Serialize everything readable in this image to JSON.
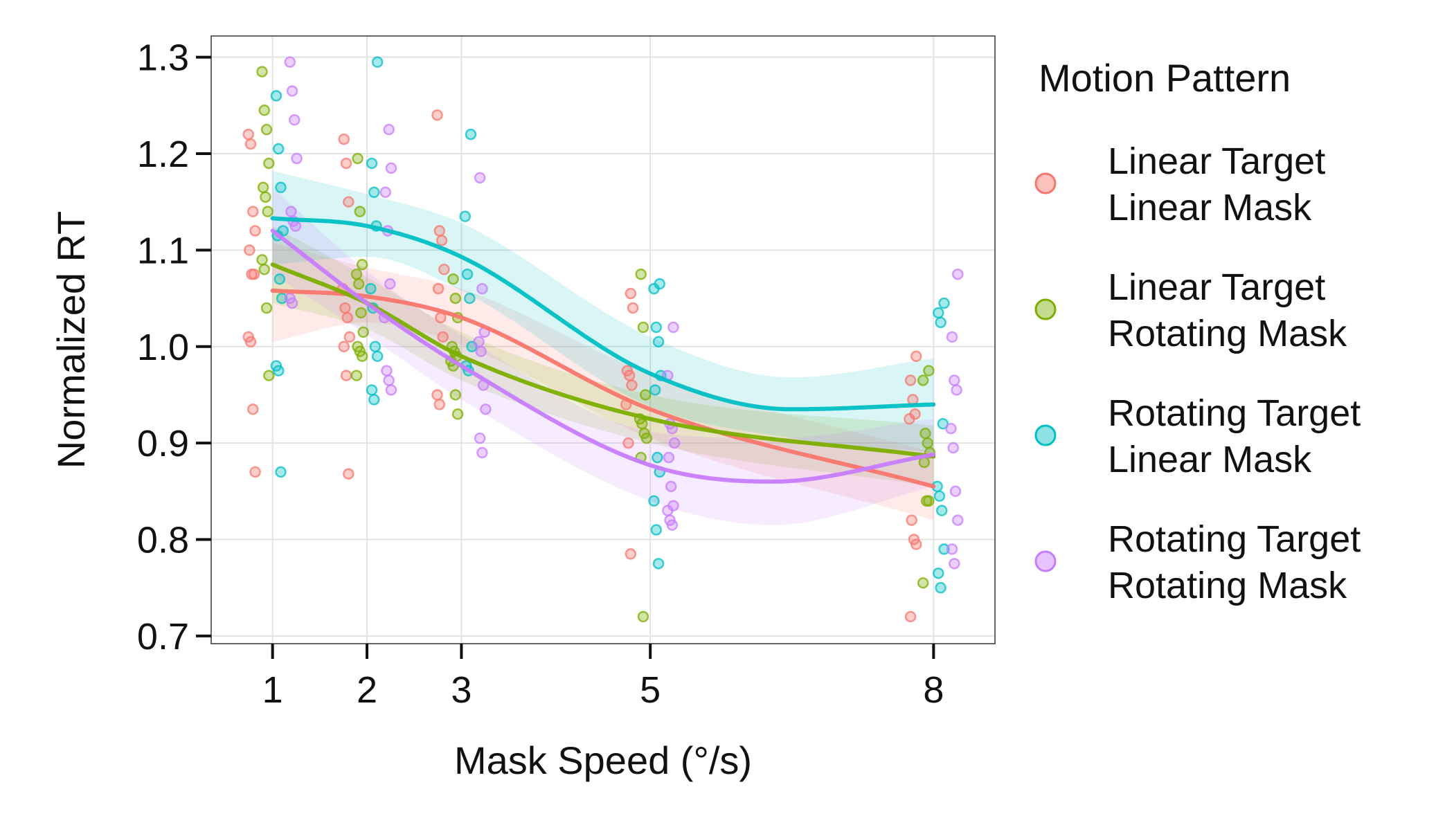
{
  "chart_data": {
    "type": "scatter",
    "xlabel": "Mask Speed (°/s)",
    "ylabel": "Normalized RT",
    "x_ticks": [
      1,
      2,
      3,
      5,
      8
    ],
    "x_tick_labels": [
      "1",
      "2",
      "3",
      "5",
      "8"
    ],
    "y_ticks": [
      0.7,
      0.8,
      0.9,
      1.0,
      1.1,
      1.2,
      1.3
    ],
    "y_tick_labels": [
      "0.7",
      "0.8",
      "0.9",
      "1.0",
      "1.1",
      "1.2",
      "1.3"
    ],
    "xlim": [
      0.35,
      8.65
    ],
    "ylim": [
      0.692,
      1.322
    ],
    "grid": true,
    "legend": {
      "title": "Motion Pattern",
      "position": "right",
      "items": [
        {
          "line1": "Linear Target",
          "line2": "Linear Mask"
        },
        {
          "line1": "Linear Target",
          "line2": "Rotating Mask"
        },
        {
          "line1": "Rotating Target",
          "line2": "Linear Mask"
        },
        {
          "line1": "Rotating Target",
          "line2": "Rotating Mask"
        }
      ]
    },
    "series": [
      {
        "color": "#F8766D",
        "points": [
          [
            1,
            1.22
          ],
          [
            1,
            1.21
          ],
          [
            1,
            1.14
          ],
          [
            1,
            1.12
          ],
          [
            1,
            1.1
          ],
          [
            1,
            1.075
          ],
          [
            1,
            1.075
          ],
          [
            1,
            1.01
          ],
          [
            1,
            1.005
          ],
          [
            1,
            0.935
          ],
          [
            1,
            0.87
          ],
          [
            2,
            1.215
          ],
          [
            2,
            1.19
          ],
          [
            2,
            1.15
          ],
          [
            2,
            1.06
          ],
          [
            2,
            1.04
          ],
          [
            2,
            1.03
          ],
          [
            2,
            1.01
          ],
          [
            2,
            1.0
          ],
          [
            2,
            0.97
          ],
          [
            2,
            0.868
          ],
          [
            3,
            1.24
          ],
          [
            3,
            1.12
          ],
          [
            3,
            1.11
          ],
          [
            3,
            1.08
          ],
          [
            3,
            1.06
          ],
          [
            3,
            1.03
          ],
          [
            3,
            1.01
          ],
          [
            3,
            0.95
          ],
          [
            3,
            0.94
          ],
          [
            5,
            1.055
          ],
          [
            5,
            1.04
          ],
          [
            5,
            0.975
          ],
          [
            5,
            0.97
          ],
          [
            5,
            0.96
          ],
          [
            5,
            0.94
          ],
          [
            5,
            0.9
          ],
          [
            5,
            0.785
          ],
          [
            8,
            0.99
          ],
          [
            8,
            0.965
          ],
          [
            8,
            0.945
          ],
          [
            8,
            0.93
          ],
          [
            8,
            0.925
          ],
          [
            8,
            0.82
          ],
          [
            8,
            0.8
          ],
          [
            8,
            0.795
          ],
          [
            8,
            0.72
          ]
        ],
        "smooth": [
          [
            1,
            1.058
          ],
          [
            2,
            1.052
          ],
          [
            3,
            1.03
          ],
          [
            5,
            0.935
          ],
          [
            8,
            0.855
          ]
        ],
        "band": [
          [
            1,
            1.005,
            1.108
          ],
          [
            2,
            1.025,
            1.082
          ],
          [
            3,
            1.002,
            1.06
          ],
          [
            5,
            0.905,
            0.972
          ],
          [
            8,
            0.82,
            0.89
          ]
        ]
      },
      {
        "color": "#7CAE00",
        "points": [
          [
            1,
            1.285
          ],
          [
            1,
            1.245
          ],
          [
            1,
            1.225
          ],
          [
            1,
            1.19
          ],
          [
            1,
            1.165
          ],
          [
            1,
            1.155
          ],
          [
            1,
            1.14
          ],
          [
            1,
            1.09
          ],
          [
            1,
            1.08
          ],
          [
            1,
            1.04
          ],
          [
            1,
            0.97
          ],
          [
            2,
            1.195
          ],
          [
            2,
            1.14
          ],
          [
            2,
            1.085
          ],
          [
            2,
            1.075
          ],
          [
            2,
            1.065
          ],
          [
            2,
            1.035
          ],
          [
            2,
            1.015
          ],
          [
            2,
            1.0
          ],
          [
            2,
            0.995
          ],
          [
            2,
            0.99
          ],
          [
            2,
            0.97
          ],
          [
            3,
            1.07
          ],
          [
            3,
            1.05
          ],
          [
            3,
            1.03
          ],
          [
            3,
            1.0
          ],
          [
            3,
            0.995
          ],
          [
            3,
            0.99
          ],
          [
            3,
            0.985
          ],
          [
            3,
            0.98
          ],
          [
            3,
            0.95
          ],
          [
            3,
            0.93
          ],
          [
            5,
            1.075
          ],
          [
            5,
            1.02
          ],
          [
            5,
            0.95
          ],
          [
            5,
            0.925
          ],
          [
            5,
            0.92
          ],
          [
            5,
            0.91
          ],
          [
            5,
            0.905
          ],
          [
            5,
            0.885
          ],
          [
            5,
            0.72
          ],
          [
            8,
            0.975
          ],
          [
            8,
            0.965
          ],
          [
            8,
            0.91
          ],
          [
            8,
            0.9
          ],
          [
            8,
            0.89
          ],
          [
            8,
            0.88
          ],
          [
            8,
            0.84
          ],
          [
            8,
            0.84
          ],
          [
            8,
            0.755
          ]
        ],
        "smooth": [
          [
            1,
            1.085
          ],
          [
            2,
            1.045
          ],
          [
            3,
            0.99
          ],
          [
            5,
            0.925
          ],
          [
            8,
            0.886
          ]
        ],
        "band": [
          [
            1,
            1.045,
            1.125
          ],
          [
            2,
            1.018,
            1.072
          ],
          [
            3,
            0.965,
            1.015
          ],
          [
            5,
            0.9,
            0.95
          ],
          [
            8,
            0.855,
            0.918
          ]
        ]
      },
      {
        "color": "#00BFC4",
        "points": [
          [
            1,
            1.26
          ],
          [
            1,
            1.205
          ],
          [
            1,
            1.165
          ],
          [
            1,
            1.12
          ],
          [
            1,
            1.115
          ],
          [
            1,
            1.07
          ],
          [
            1,
            1.05
          ],
          [
            1,
            0.98
          ],
          [
            1,
            0.975
          ],
          [
            1,
            0.87
          ],
          [
            2,
            1.295
          ],
          [
            2,
            1.19
          ],
          [
            2,
            1.16
          ],
          [
            2,
            1.125
          ],
          [
            2,
            1.06
          ],
          [
            2,
            1.04
          ],
          [
            2,
            1.0
          ],
          [
            2,
            0.99
          ],
          [
            2,
            0.955
          ],
          [
            2,
            0.945
          ],
          [
            3,
            1.22
          ],
          [
            3,
            1.135
          ],
          [
            3,
            1.075
          ],
          [
            3,
            1.05
          ],
          [
            3,
            1.0
          ],
          [
            3,
            0.98
          ],
          [
            3,
            0.975
          ],
          [
            5,
            1.065
          ],
          [
            5,
            1.06
          ],
          [
            5,
            1.02
          ],
          [
            5,
            1.005
          ],
          [
            5,
            0.97
          ],
          [
            5,
            0.955
          ],
          [
            5,
            0.885
          ],
          [
            5,
            0.87
          ],
          [
            5,
            0.84
          ],
          [
            5,
            0.81
          ],
          [
            5,
            0.775
          ],
          [
            8,
            1.045
          ],
          [
            8,
            1.035
          ],
          [
            8,
            1.025
          ],
          [
            8,
            0.92
          ],
          [
            8,
            0.855
          ],
          [
            8,
            0.845
          ],
          [
            8,
            0.83
          ],
          [
            8,
            0.79
          ],
          [
            8,
            0.765
          ],
          [
            8,
            0.75
          ]
        ],
        "smooth": [
          [
            1,
            1.133
          ],
          [
            2,
            1.125
          ],
          [
            3,
            1.093
          ],
          [
            5,
            0.972
          ],
          [
            6.5,
            0.935
          ],
          [
            8,
            0.94
          ]
        ],
        "band": [
          [
            1,
            1.085,
            1.182
          ],
          [
            2,
            1.093,
            1.158
          ],
          [
            3,
            1.058,
            1.128
          ],
          [
            5,
            0.938,
            1.01
          ],
          [
            6.5,
            0.905,
            0.968
          ],
          [
            8,
            0.89,
            0.988
          ]
        ]
      },
      {
        "color": "#C77CFF",
        "points": [
          [
            1,
            1.295
          ],
          [
            1,
            1.265
          ],
          [
            1,
            1.235
          ],
          [
            1,
            1.195
          ],
          [
            1,
            1.14
          ],
          [
            1,
            1.13
          ],
          [
            1,
            1.125
          ],
          [
            1,
            1.05
          ],
          [
            1,
            1.045
          ],
          [
            2,
            1.225
          ],
          [
            2,
            1.185
          ],
          [
            2,
            1.16
          ],
          [
            2,
            1.12
          ],
          [
            2,
            1.065
          ],
          [
            2,
            1.03
          ],
          [
            2,
            0.975
          ],
          [
            2,
            0.965
          ],
          [
            2,
            0.955
          ],
          [
            3,
            1.175
          ],
          [
            3,
            1.06
          ],
          [
            3,
            1.015
          ],
          [
            3,
            1.005
          ],
          [
            3,
            0.995
          ],
          [
            3,
            0.96
          ],
          [
            3,
            0.935
          ],
          [
            3,
            0.905
          ],
          [
            3,
            0.89
          ],
          [
            5,
            1.02
          ],
          [
            5,
            0.97
          ],
          [
            5,
            0.92
          ],
          [
            5,
            0.915
          ],
          [
            5,
            0.9
          ],
          [
            5,
            0.885
          ],
          [
            5,
            0.855
          ],
          [
            5,
            0.835
          ],
          [
            5,
            0.83
          ],
          [
            5,
            0.82
          ],
          [
            5,
            0.815
          ],
          [
            8,
            1.075
          ],
          [
            8,
            1.01
          ],
          [
            8,
            0.965
          ],
          [
            8,
            0.955
          ],
          [
            8,
            0.915
          ],
          [
            8,
            0.895
          ],
          [
            8,
            0.85
          ],
          [
            8,
            0.82
          ],
          [
            8,
            0.79
          ],
          [
            8,
            0.775
          ]
        ],
        "smooth": [
          [
            1,
            1.12
          ],
          [
            2,
            1.045
          ],
          [
            3,
            0.98
          ],
          [
            5,
            0.877
          ],
          [
            6.3,
            0.86
          ],
          [
            8,
            0.888
          ]
        ],
        "band": [
          [
            1,
            1.075,
            1.165
          ],
          [
            2,
            1.012,
            1.078
          ],
          [
            3,
            0.945,
            1.012
          ],
          [
            5,
            0.84,
            0.912
          ],
          [
            6.3,
            0.815,
            0.905
          ],
          [
            8,
            0.855,
            0.925
          ]
        ]
      }
    ]
  }
}
